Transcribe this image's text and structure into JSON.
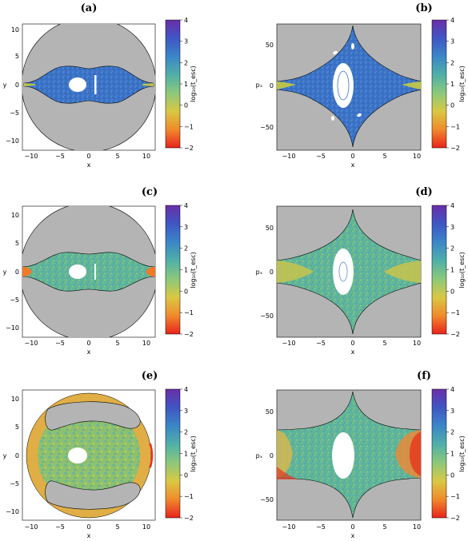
{
  "panels": [
    {
      "label": "(a)",
      "xlabel": "x",
      "ylabel": "y",
      "cb_label": "log₁₀(t_esc)"
    },
    {
      "label": "(b)",
      "xlabel": "x",
      "ylabel": "pₓ",
      "cb_label": "log₁₀(t_esc)"
    },
    {
      "label": "(c)",
      "xlabel": "x",
      "ylabel": "y",
      "cb_label": "log₁₀(t_esc)"
    },
    {
      "label": "(d)",
      "xlabel": "x",
      "ylabel": "pₓ",
      "cb_label": "log₁₀(t_esc)"
    },
    {
      "label": "(e)",
      "xlabel": "x",
      "ylabel": "y",
      "cb_label": "log₁₀(t_esc)"
    },
    {
      "label": "(f)",
      "xlabel": "x",
      "ylabel": "pₓ",
      "cb_label": "log₁₀(t_esc)"
    }
  ],
  "xy_axes": {
    "x_ticks": [
      "−10",
      "−5",
      "0",
      "5",
      "10"
    ],
    "y_ticks": [
      "10",
      "5",
      "0",
      "−5",
      "−10"
    ]
  },
  "xpx_axes": {
    "x_ticks": [
      "−10",
      "−5",
      "0",
      "5",
      "10"
    ],
    "y_ticks": [
      "50",
      "0",
      "−50"
    ]
  },
  "colorbar": {
    "ticks": [
      "4",
      "3",
      "2",
      "1",
      "0",
      "−1",
      "−2"
    ],
    "colors": [
      "#6a2ea8",
      "#3f56c4",
      "#3b86c8",
      "#4fb0a8",
      "#8cc87a",
      "#d9c844",
      "#f08a2c",
      "#e8231c"
    ]
  },
  "colors": {
    "forbidden": "#b4b4b4",
    "island": "#ffffff",
    "boundary": "#000000"
  }
}
